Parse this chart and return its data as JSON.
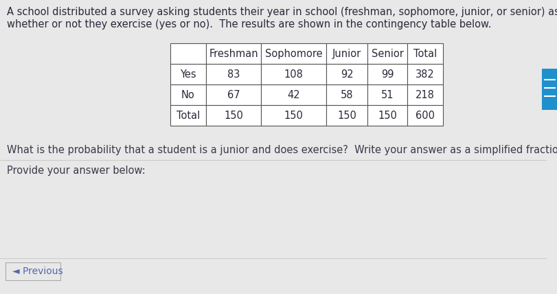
{
  "title_line1": "A school distributed a survey asking students their year in school (freshman, sophomore, junior, or senior) as well as",
  "title_line2": "whether or not they exercise (yes or no).  The results are shown in the contingency table below.",
  "col_headers": [
    "",
    "Freshman",
    "Sophomore",
    "Junior",
    "Senior",
    "Total"
  ],
  "row_headers": [
    "Yes",
    "No",
    "Total"
  ],
  "table_data": [
    [
      83,
      108,
      92,
      99,
      382
    ],
    [
      67,
      42,
      58,
      51,
      218
    ],
    [
      150,
      150,
      150,
      150,
      600
    ]
  ],
  "question": "What is the probability that a student is a junior and does exercise?  Write your answer as a simplified fraction.",
  "provide_label": "Provide your answer below:",
  "prev_button": "◄ Previous",
  "bg_color": "#e8e8e8",
  "table_bg": "#ffffff",
  "header_bg": "#ffffff",
  "border_color": "#555555",
  "text_color": "#2a2a3a",
  "question_color": "#3a3a4a",
  "prev_color": "#5566aa",
  "right_bar_color": "#1e90cc",
  "line_color": "#cccccc"
}
